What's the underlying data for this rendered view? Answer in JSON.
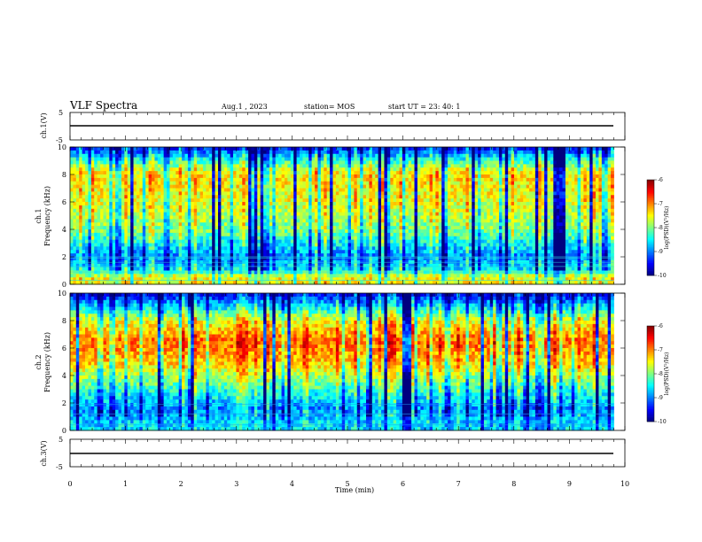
{
  "header": {
    "title": "VLF Spectra",
    "date": "Aug.1 , 2023",
    "station": "station= MOS",
    "start_ut": "start UT = 23: 40: 1"
  },
  "chart_data": [
    {
      "type": "line",
      "panel": "ch1-voltage",
      "ylabel": "ch.1(V)",
      "ylim": [
        -5,
        5
      ],
      "y_ticks": [
        "5",
        "-5"
      ],
      "xlim": [
        0,
        10
      ],
      "series": [
        {
          "x": [
            0,
            9.8
          ],
          "y": [
            0,
            0
          ]
        }
      ]
    },
    {
      "type": "heatmap",
      "panel": "ch1-spectrogram",
      "ylabel": "ch.1\nFrequency (kHz)",
      "ylim": [
        0,
        10
      ],
      "y_ticks": [
        "0",
        "2",
        "4",
        "6",
        "8",
        "10"
      ],
      "xlim": [
        0,
        10
      ],
      "data_extent_x": [
        0,
        9.8
      ],
      "colorbar": {
        "label": "log(PSD)(V²/Hz)",
        "range": [
          -10,
          -6
        ],
        "ticks": [
          "-6",
          "-7",
          "-8",
          "-9",
          "-10"
        ]
      },
      "description_profile": [
        {
          "freq_khz": 0.5,
          "log_psd": -7.5
        },
        {
          "freq_khz": 1.0,
          "log_psd": -8.5
        },
        {
          "freq_khz": 2.0,
          "log_psd": -9.0
        },
        {
          "freq_khz": 4.0,
          "log_psd": -8.0
        },
        {
          "freq_khz": 6.0,
          "log_psd": -7.6
        },
        {
          "freq_khz": 8.0,
          "log_psd": -7.4
        },
        {
          "freq_khz": 9.0,
          "log_psd": -8.3
        },
        {
          "freq_khz": 10.0,
          "log_psd": -9.5
        }
      ]
    },
    {
      "type": "heatmap",
      "panel": "ch2-spectrogram",
      "ylabel": "ch.2\nFrequency (kHz)",
      "ylim": [
        0,
        10
      ],
      "y_ticks": [
        "0",
        "2",
        "4",
        "6",
        "8",
        "10"
      ],
      "xlim": [
        0,
        10
      ],
      "data_extent_x": [
        0,
        9.8
      ],
      "colorbar": {
        "label": "log(PSD)(V²/Hz)",
        "range": [
          -10,
          -6
        ],
        "ticks": [
          "-6",
          "-7",
          "-8",
          "-9",
          "-10"
        ]
      },
      "description_profile": [
        {
          "freq_khz": 0.5,
          "log_psd": -8.6
        },
        {
          "freq_khz": 1.5,
          "log_psd": -9.0
        },
        {
          "freq_khz": 3.0,
          "log_psd": -8.3
        },
        {
          "freq_khz": 5.0,
          "log_psd": -7.3
        },
        {
          "freq_khz": 6.5,
          "log_psd": -6.9
        },
        {
          "freq_khz": 8.0,
          "log_psd": -7.6
        },
        {
          "freq_khz": 9.0,
          "log_psd": -8.6
        },
        {
          "freq_khz": 10.0,
          "log_psd": -9.6
        }
      ]
    },
    {
      "type": "line",
      "panel": "ch3-voltage",
      "ylabel": "ch.3(V)",
      "ylim": [
        -5,
        5
      ],
      "y_ticks": [
        "5",
        "-5"
      ],
      "xlim": [
        0,
        10
      ],
      "series": [
        {
          "x": [
            0,
            9.8
          ],
          "y": [
            0,
            0
          ]
        }
      ]
    }
  ],
  "x_axis": {
    "label": "Time (min)",
    "ticks": [
      "0",
      "1",
      "2",
      "3",
      "4",
      "5",
      "6",
      "7",
      "8",
      "9",
      "10"
    ]
  }
}
